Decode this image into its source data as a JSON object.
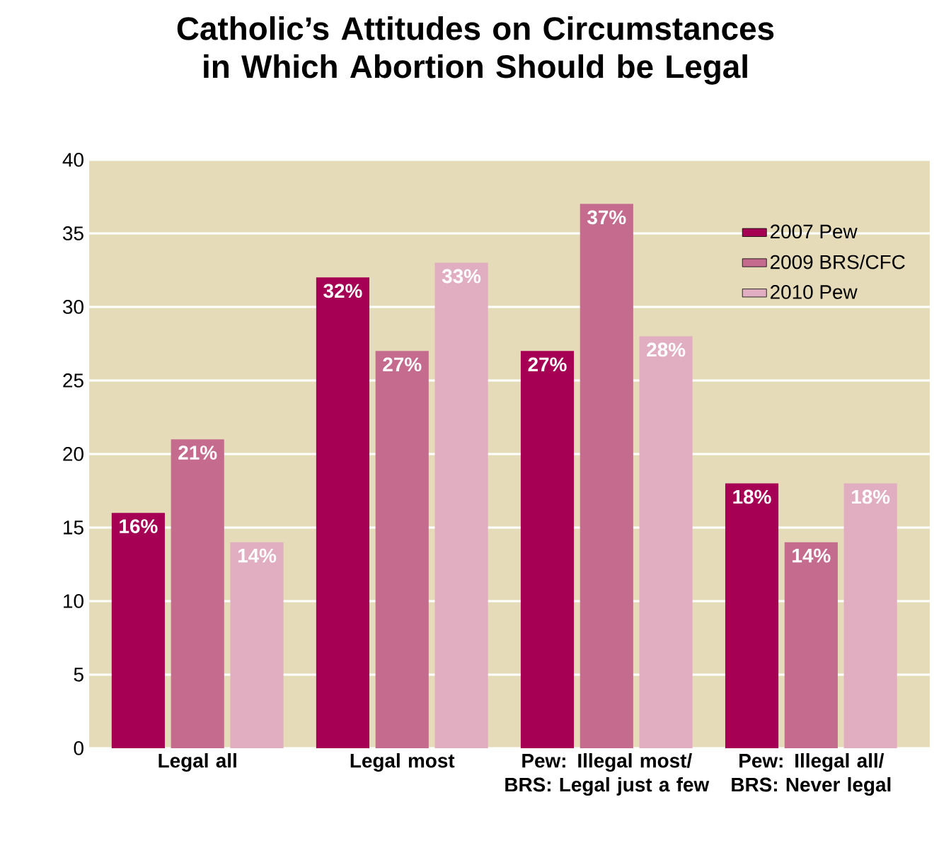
{
  "chart_data": {
    "type": "bar",
    "title": "Catholic’s Attitudes on Circumstances in Which Abortion Should be Legal",
    "categories": [
      "Legal all",
      "Legal most",
      "Pew: Illegal most/ BRS: Legal just a few",
      "Pew: Illegal all/ BRS: Never legal"
    ],
    "series": [
      {
        "name": "2007 Pew",
        "color": "#a60054",
        "values": [
          16,
          32,
          27,
          18
        ],
        "value_labels": [
          "16%",
          "32%",
          "27%",
          "18%"
        ]
      },
      {
        "name": "2009 BRS/CFC",
        "color": "#c56b8e",
        "values": [
          21,
          27,
          37,
          14
        ],
        "value_labels": [
          "21%",
          "27%",
          "37%",
          "14%"
        ]
      },
      {
        "name": "2010 Pew",
        "color": "#e0aec0",
        "values": [
          14,
          33,
          28,
          18
        ],
        "value_labels": [
          "14%",
          "33%",
          "28%",
          "18%"
        ]
      }
    ],
    "ylim": [
      0,
      40
    ],
    "yticks": [
      0,
      5,
      10,
      15,
      20,
      25,
      30,
      35,
      40
    ],
    "grid": "y",
    "legend": "top right"
  }
}
